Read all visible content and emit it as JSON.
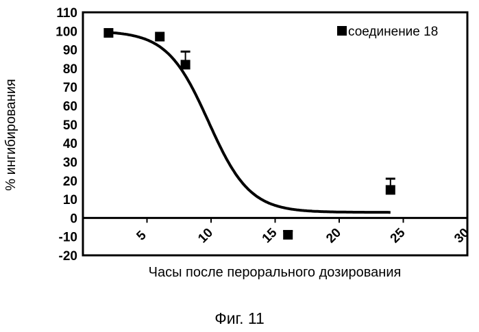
{
  "chart_data": {
    "type": "scatter",
    "xlabel": "Часы после перорального дозирования",
    "ylabel": "% ингибирования",
    "xlim": [
      0,
      30
    ],
    "ylim": [
      -20,
      110
    ],
    "x_ticks": [
      5,
      10,
      15,
      20,
      25,
      30
    ],
    "y_ticks": [
      110,
      100,
      90,
      80,
      70,
      60,
      50,
      40,
      30,
      20,
      10,
      0,
      -10,
      -20
    ],
    "legend_position": "top-right",
    "grid": false,
    "series": [
      {
        "name": "соединение 18",
        "marker": "square",
        "color": "#000000",
        "points": [
          {
            "x": 2,
            "y": 99,
            "err": 0
          },
          {
            "x": 6,
            "y": 97,
            "err": 0
          },
          {
            "x": 8,
            "y": 82,
            "err": 7
          },
          {
            "x": 16,
            "y": -9,
            "err": 2
          },
          {
            "x": 24,
            "y": 15,
            "err": 6
          }
        ]
      }
    ],
    "fit_curve": {
      "model": "sigmoid",
      "top": 100,
      "bottom": 3,
      "x50": 9.8,
      "slope": 0.62,
      "x_range": [
        2,
        24
      ]
    }
  },
  "caption": "Фиг. 11"
}
